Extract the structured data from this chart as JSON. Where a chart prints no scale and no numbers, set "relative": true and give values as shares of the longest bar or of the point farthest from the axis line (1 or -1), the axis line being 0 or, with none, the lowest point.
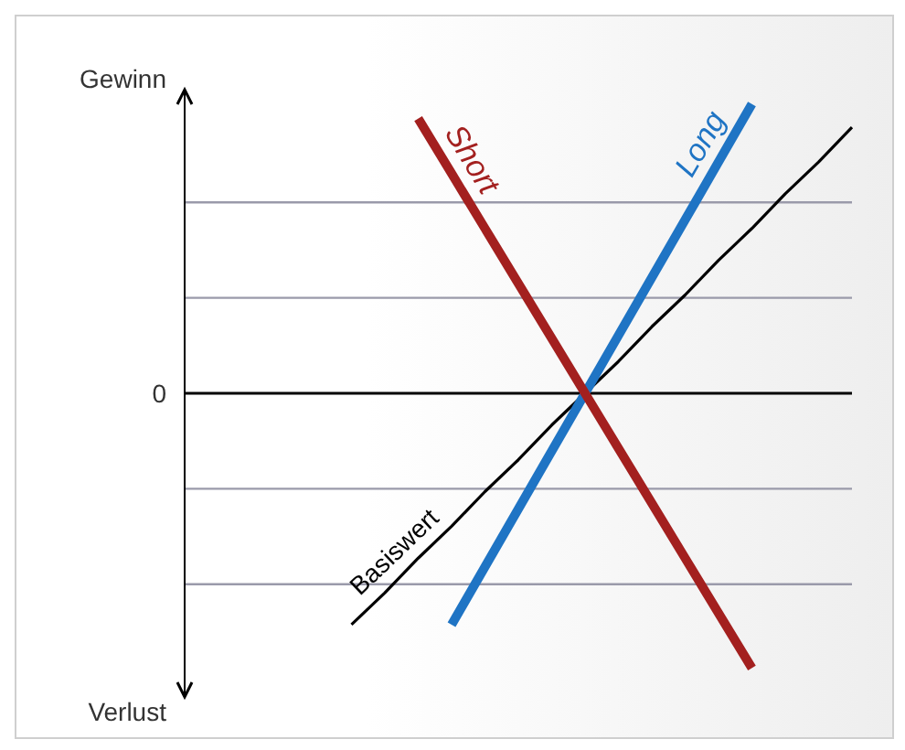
{
  "chart_data": {
    "type": "line",
    "relative": true,
    "categories": [
      null,
      null,
      null,
      null,
      null,
      null,
      null,
      null,
      null,
      null,
      null,
      null,
      null,
      null,
      null,
      null,
      null,
      null,
      null,
      null,
      null
    ],
    "series": [
      {
        "name": "Basiswert",
        "color": "#000000",
        "values": [
          null,
          null,
          null,
          null,
          null,
          -0.8,
          -0.69,
          -0.57,
          -0.46,
          -0.34,
          -0.23,
          -0.11,
          0,
          0.11,
          0.23,
          0.34,
          0.46,
          0.57,
          0.69,
          0.8,
          0.92
        ]
      },
      {
        "name": "Long",
        "color": "#1f74c4",
        "values": [
          null,
          null,
          null,
          null,
          null,
          null,
          null,
          null,
          -0.8,
          -0.6,
          -0.4,
          -0.2,
          0,
          0.2,
          0.4,
          0.6,
          0.8,
          1.0,
          null,
          null,
          null
        ]
      },
      {
        "name": "Short",
        "color": "#a3201f",
        "values": [
          null,
          null,
          null,
          null,
          null,
          null,
          null,
          0.95,
          0.76,
          0.57,
          0.38,
          0.19,
          0,
          -0.19,
          -0.38,
          -0.57,
          -0.76,
          -0.95,
          null,
          null,
          null
        ]
      }
    ],
    "annotations": [
      "Gewinn",
      "0",
      "Verlust"
    ],
    "ref_lines": [
      {
        "axis": "y",
        "value": 0.66,
        "color": "#9a9aaa"
      },
      {
        "axis": "y",
        "value": 0.33,
        "color": "#9a9aaa"
      },
      {
        "axis": "y",
        "value": 0,
        "color": "#000000"
      },
      {
        "axis": "y",
        "value": -0.33,
        "color": "#9a9aaa"
      },
      {
        "axis": "y",
        "value": -0.66,
        "color": "#9a9aaa"
      }
    ],
    "marker": "none",
    "line_style": "solid",
    "legend": false
  }
}
